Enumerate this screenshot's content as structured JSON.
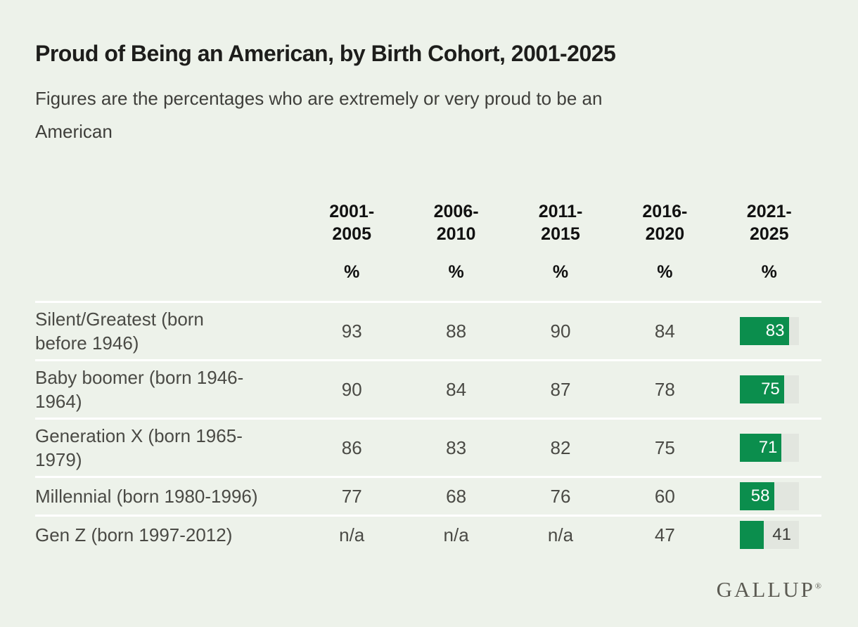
{
  "page": {
    "title": "Proud of Being an American, by Birth Cohort, 2001-2025",
    "subtitle": "Figures are the percentages who are extremely or very proud to be an American",
    "brand": "GALLUP",
    "brand_mark": "®"
  },
  "colors": {
    "background": "#edf2ea",
    "bar_green": "#0b8e4d",
    "bar_track": "#e2e6df",
    "row_separator": "#ffffff",
    "title_text": "#1d1d1b",
    "body_text": "#4a4a45",
    "logo_text": "#5c5b53"
  },
  "table": {
    "percent_label": "%",
    "na_label": "n/a",
    "columns": [
      "2001-2005",
      "2006-2010",
      "2011-2015",
      "2016-2020",
      "2021-2025"
    ],
    "rows": [
      {
        "label": "Silent/Greatest (born before 1946)",
        "values": [
          "93",
          "88",
          "90",
          "84"
        ],
        "bar": 83
      },
      {
        "label": "Baby boomer (born 1946-1964)",
        "values": [
          "90",
          "84",
          "87",
          "78"
        ],
        "bar": 75
      },
      {
        "label": "Generation X (born 1965-1979)",
        "values": [
          "86",
          "83",
          "82",
          "75"
        ],
        "bar": 71
      },
      {
        "label": "Millennial (born 1980-1996)",
        "values": [
          "77",
          "68",
          "76",
          "60"
        ],
        "bar": 58
      },
      {
        "label": "Gen Z (born 1997-2012)",
        "values": [
          "n/a",
          "n/a",
          "n/a",
          "47"
        ],
        "bar": 41
      }
    ]
  },
  "chart_data": {
    "type": "table",
    "title": "Proud of Being an American, by Birth Cohort, 2001-2025",
    "subtitle": "Figures are the percentages who are extremely or very proud to be an American",
    "categories": [
      "2001-2005",
      "2006-2010",
      "2011-2015",
      "2016-2020",
      "2021-2025"
    ],
    "unit": "%",
    "series": [
      {
        "name": "Silent/Greatest (born before 1946)",
        "values": [
          93,
          88,
          90,
          84,
          83
        ]
      },
      {
        "name": "Baby boomer (born 1946-1964)",
        "values": [
          90,
          84,
          87,
          78,
          75
        ]
      },
      {
        "name": "Generation X (born 1965-1979)",
        "values": [
          86,
          83,
          82,
          75,
          71
        ]
      },
      {
        "name": "Millennial (born 1980-1996)",
        "values": [
          77,
          68,
          76,
          60,
          58
        ]
      },
      {
        "name": "Gen Z (born 1997-2012)",
        "values": [
          null,
          null,
          null,
          47,
          41
        ]
      }
    ],
    "na_label": "n/a",
    "last_column_rendered_as": "mini horizontal bar, scale 0-100",
    "source_brand": "GALLUP"
  }
}
